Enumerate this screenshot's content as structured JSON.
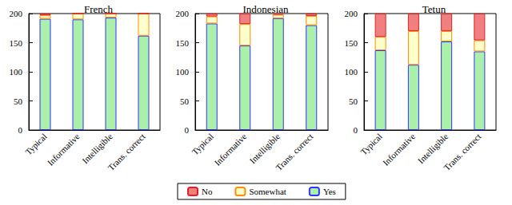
{
  "chart_data": [
    {
      "type": "bar",
      "title": "French",
      "stacked": true,
      "grid": false,
      "categories": [
        "Typical",
        "Informative",
        "Intelligible",
        "Trans. correct"
      ],
      "ylim": [
        0,
        200
      ],
      "yticks": [
        0,
        50,
        100,
        150,
        200
      ],
      "series": [
        {
          "name": "Yes",
          "color": "#aaf0aa",
          "values": [
            191,
            190,
            193,
            162
          ]
        },
        {
          "name": "Somewhat",
          "color": "#ffffcc",
          "values": [
            6,
            10,
            7,
            38
          ]
        },
        {
          "name": "No",
          "color": "#f08080",
          "values": [
            3,
            0,
            0,
            0
          ]
        }
      ]
    },
    {
      "type": "bar",
      "title": "Indonesian",
      "stacked": true,
      "grid": false,
      "legend": "bottom",
      "categories": [
        "Typical",
        "Informative",
        "Intelligible",
        "Trans. correct"
      ],
      "ylim": [
        0,
        200
      ],
      "yticks": [
        0,
        50,
        100,
        150,
        200
      ],
      "series": [
        {
          "name": "Yes",
          "color": "#aaf0aa",
          "values": [
            183,
            145,
            192,
            180
          ]
        },
        {
          "name": "Somewhat",
          "color": "#ffffcc",
          "values": [
            12,
            37,
            6,
            16
          ]
        },
        {
          "name": "No",
          "color": "#f08080",
          "values": [
            5,
            18,
            2,
            4
          ]
        }
      ]
    },
    {
      "type": "bar",
      "title": "Tetun",
      "stacked": true,
      "grid": false,
      "categories": [
        "Typical",
        "Informative",
        "Intelligible",
        "Trans. correct"
      ],
      "ylim": [
        0,
        200
      ],
      "yticks": [
        0,
        50,
        100,
        150,
        200
      ],
      "series": [
        {
          "name": "Yes",
          "color": "#aaf0aa",
          "values": [
            137,
            112,
            152,
            135
          ]
        },
        {
          "name": "Somewhat",
          "color": "#ffffcc",
          "values": [
            23,
            58,
            18,
            19
          ]
        },
        {
          "name": "No",
          "color": "#f08080",
          "values": [
            40,
            30,
            30,
            46
          ]
        }
      ]
    }
  ]
}
